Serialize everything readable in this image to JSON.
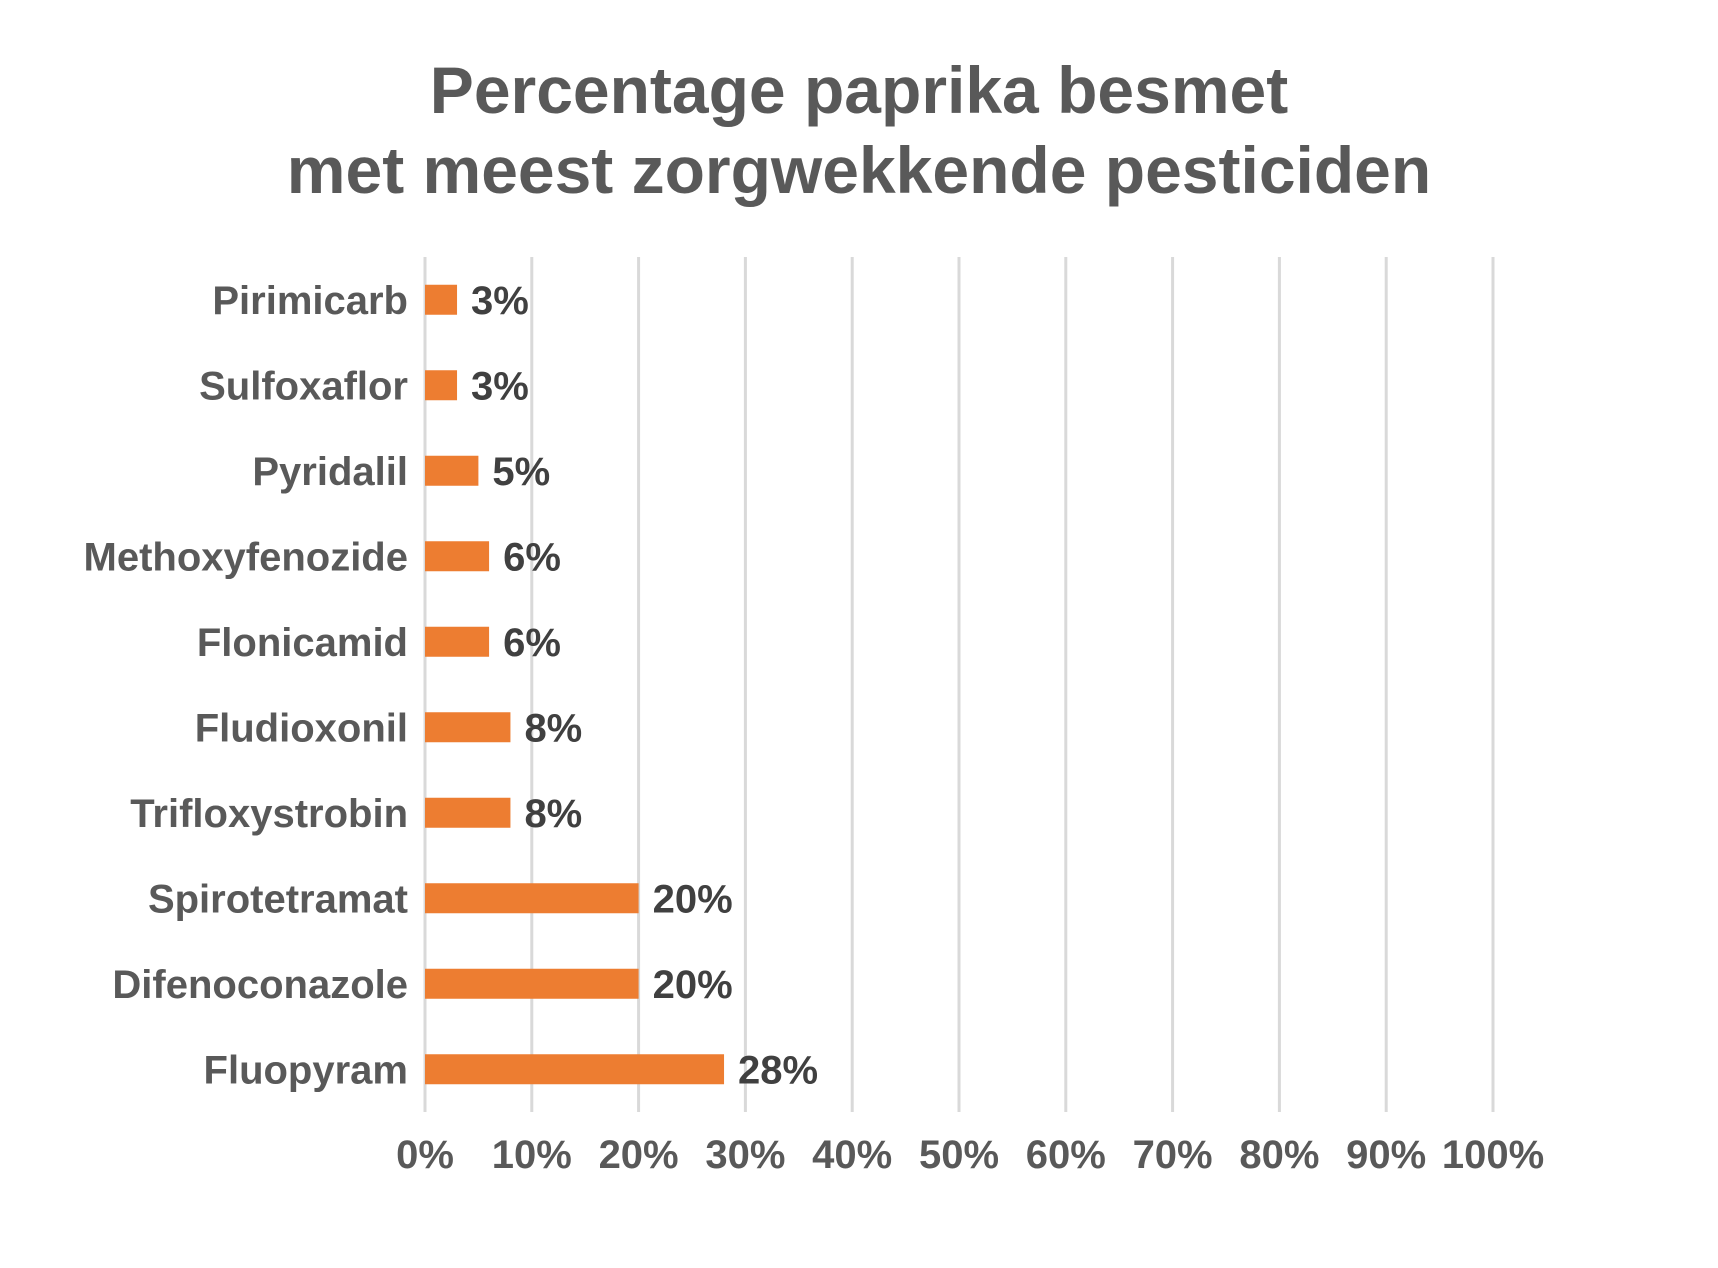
{
  "chart_data": {
    "type": "bar",
    "orientation": "horizontal",
    "title": [
      "Percentage paprika besmet",
      "met meest zorgwekkende pesticiden"
    ],
    "categories": [
      "Pirimicarb",
      "Sulfoxaflor",
      "Pyridalil",
      "Methoxyfenozide",
      "Flonicamid",
      "Fludioxonil",
      "Trifloxystrobin",
      "Spirotetramat",
      "Difenoconazole",
      "Fluopyram"
    ],
    "values": [
      3,
      3,
      5,
      6,
      6,
      8,
      8,
      20,
      20,
      28
    ],
    "data_labels": [
      "3%",
      "3%",
      "5%",
      "6%",
      "6%",
      "8%",
      "8%",
      "20%",
      "20%",
      "28%"
    ],
    "xlabel": "",
    "ylabel": "",
    "xlim": [
      0,
      100
    ],
    "x_ticks": [
      "0%",
      "10%",
      "20%",
      "30%",
      "40%",
      "50%",
      "60%",
      "70%",
      "80%",
      "90%",
      "100%"
    ],
    "grid": true,
    "bar_color": "#ED7D31",
    "text_color": "#595959",
    "label_color": "#404040",
    "grid_color": "#D9D9D9"
  }
}
